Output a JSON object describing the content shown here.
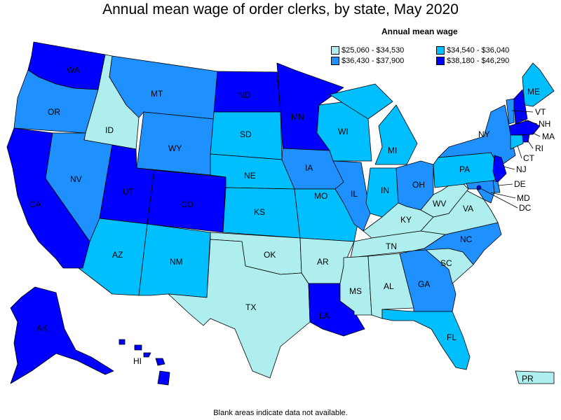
{
  "title": "Annual mean wage of order clerks, by state, May 2020",
  "legend": {
    "title": "Annual mean wage",
    "bins": [
      {
        "key": "c1",
        "label": "$25,060 - $34,530",
        "color": "#afeeee"
      },
      {
        "key": "c2",
        "label": "$34,540 - $36,040",
        "color": "#00bfff"
      },
      {
        "key": "c3",
        "label": "$36,430 - $37,900",
        "color": "#1e90ff"
      },
      {
        "key": "c4",
        "label": "$38,180 - $46,290",
        "color": "#0000ff"
      }
    ]
  },
  "footnote": "Blank areas indicate data not available.",
  "states": {
    "WA": "c4",
    "OR": "c3",
    "CA": "c4",
    "ID": "c1",
    "NV": "c3",
    "MT": "c3",
    "WY": "c3",
    "UT": "c4",
    "CO": "c4",
    "AZ": "c2",
    "NM": "c2",
    "ND": "c4",
    "SD": "c2",
    "NE": "c2",
    "KS": "c2",
    "OK": "c1",
    "TX": "c1",
    "MN": "c4",
    "IA": "c3",
    "MO": "c2",
    "AR": "c1",
    "LA": "c4",
    "WI": "c2",
    "IL": "c3",
    "MI": "c2",
    "IN": "c2",
    "OH": "c3",
    "KY": "c1",
    "TN": "c1",
    "MS": "c1",
    "AL": "c1",
    "GA": "c3",
    "FL": "c2",
    "SC": "c1",
    "NC": "c3",
    "VA": "c1",
    "WV": "c1",
    "PA": "c2",
    "NY": "c3",
    "ME": "c2",
    "VT": "c3",
    "NH": "c4",
    "MA": "c4",
    "RI": "c4",
    "CT": "c2",
    "NJ": "c4",
    "DE": "c3",
    "MD": "c3",
    "DC": "c4",
    "AK": "c4",
    "HI": "c4",
    "PR": "c1"
  }
}
